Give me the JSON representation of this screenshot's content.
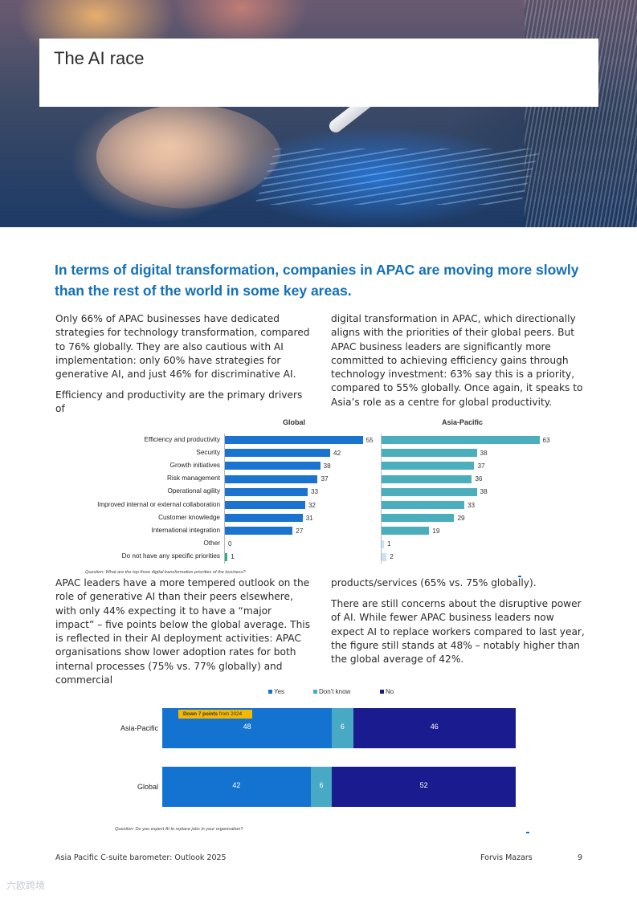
{
  "page_title": "The AI race",
  "headline": "In terms of digital transformation, companies in APAC are moving more slowly than the rest of the world in some key areas.",
  "col1_p1": "Only 66% of APAC businesses have dedicated strategies for technology transformation, compared to 76% globally. They are also cautious with AI implementation: only 60% have strategies for generative AI, and just 46% for discriminative AI.",
  "col1_p2": "Efficiency and productivity are the primary drivers of",
  "col2_p1": "digital transformation in APAC, which directionally aligns with the priorities of their global peers. But APAC business leaders are significantly more committed to achieving efficiency gains through technology investment: 63% say this is a priority, compared to 55% globally. Once again, it speaks to Asia’s role as a centre for global productivity.",
  "col1_p3": "APAC leaders have a more tempered outlook on the role of generative AI than their peers elsewhere, with only 44% expecting it to have a “major impact” – five points below the global average. This is reflected in their AI deployment activities: APAC organisations show lower adoption rates for both internal processes (75% vs. 77% globally) and commercial",
  "col2_p2": "products/services (65% vs. 75% globally).",
  "col2_p3": "There are still concerns about the disruptive power of AI. While fewer APAC business leaders now expect AI to replace workers compared to last year, the figure still stands at 48% – notably higher than the global average of 42%.",
  "chart_data": [
    {
      "type": "bar",
      "orientation": "horizontal",
      "question": "Question: What are the top three digital transformation priorities of the business?",
      "categories": [
        "Efficiency and productivity",
        "Security",
        "Growth initiatives",
        "Risk management",
        "Operational agility",
        "Improved internal or external collaboration",
        "Customer knowledge",
        "International integration",
        "Other",
        "Do not have any specific priorities"
      ],
      "series": [
        {
          "name": "Global",
          "values": [
            55,
            42,
            38,
            37,
            33,
            32,
            31,
            27,
            0,
            1
          ],
          "color": "#1a73cf",
          "last_color": "#2db08a"
        },
        {
          "name": "Asia-Pacific",
          "values": [
            63,
            38,
            37,
            36,
            38,
            33,
            29,
            19,
            1,
            2
          ],
          "color": "#4aaebd",
          "last_color": "#c6e2f7"
        }
      ]
    },
    {
      "type": "bar",
      "orientation": "horizontal",
      "stacked": true,
      "question": "Question: Do you expect AI to replace jobs in your organisation?",
      "categories": [
        "Asia-Pacific",
        "Global"
      ],
      "series": [
        {
          "name": "Yes",
          "values": [
            48,
            42
          ],
          "color": "#1473d0"
        },
        {
          "name": "Don't know",
          "values": [
            6,
            6
          ],
          "color": "#48a9c5"
        },
        {
          "name": "No",
          "values": [
            46,
            52
          ],
          "color": "#1a1b8e"
        }
      ],
      "legend_position": "top",
      "annotation": {
        "bold": "Down 7 points",
        "rest": " from 2024"
      }
    }
  ],
  "footer": {
    "left": "Asia Pacific C-suite barometer: Outlook 2025",
    "brand": "Forvis Mazars",
    "page_number": "9"
  },
  "watermark": "六欧跨境"
}
